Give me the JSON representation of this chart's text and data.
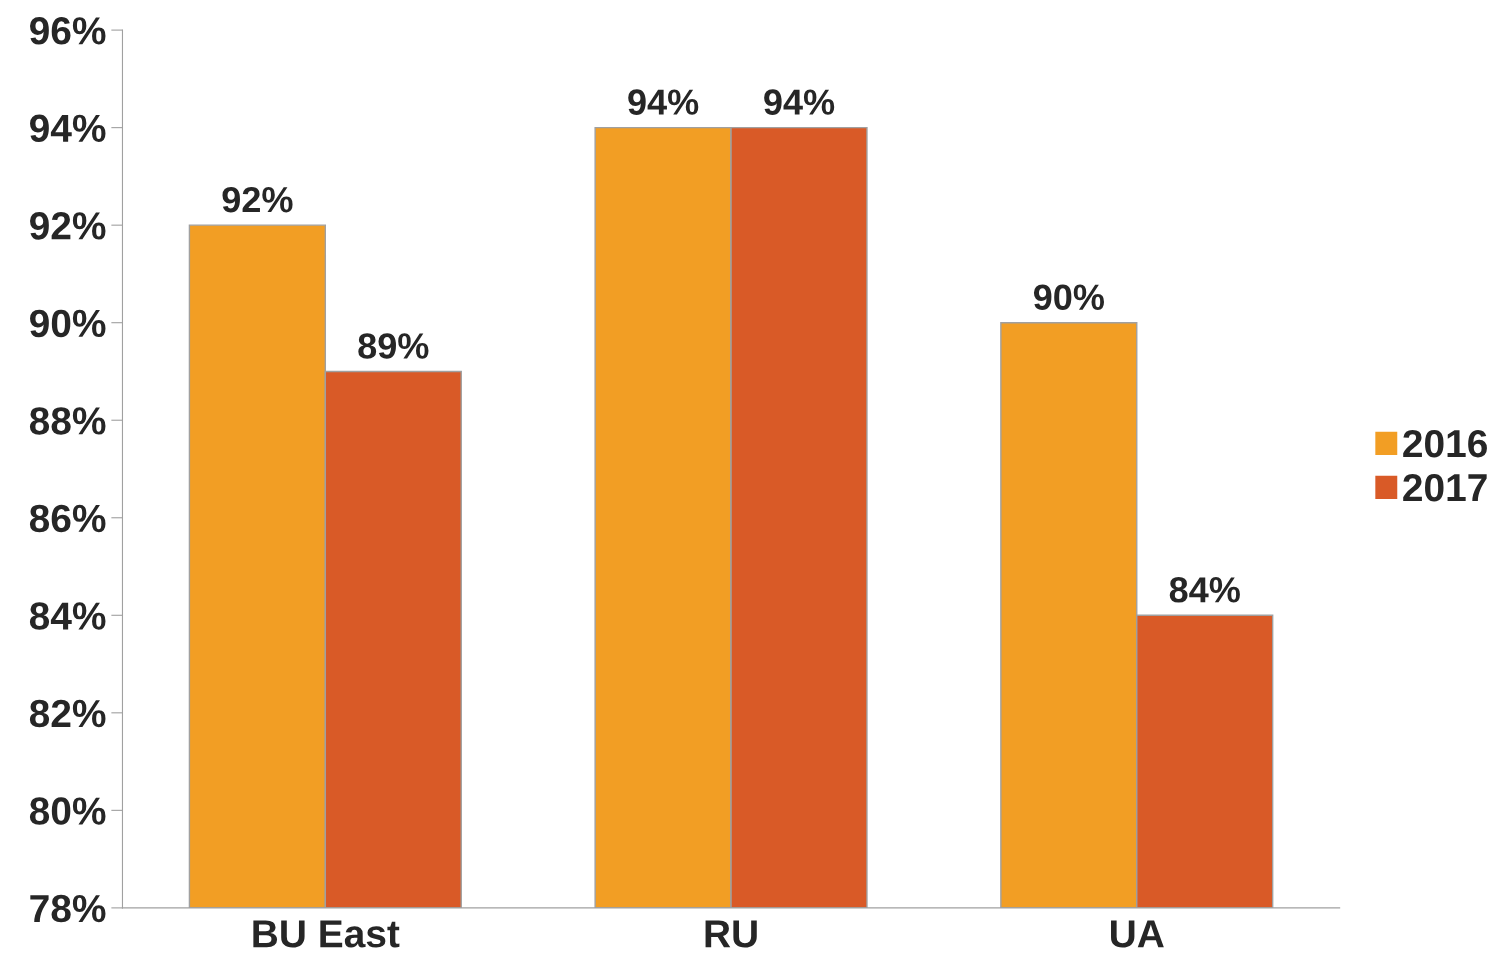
{
  "chart_data": {
    "type": "bar",
    "categories": [
      "BU East",
      "RU",
      "UA"
    ],
    "series": [
      {
        "name": "2016",
        "color": "#f29e24",
        "values": [
          92,
          94,
          90
        ],
        "value_labels": [
          "92%",
          "94%",
          "90%"
        ]
      },
      {
        "name": "2017",
        "color": "#d95a27",
        "values": [
          89,
          94,
          84
        ],
        "value_labels": [
          "89%",
          "94%",
          "84%"
        ]
      }
    ],
    "ylim": [
      78,
      96
    ],
    "yticks": [
      {
        "value": 78,
        "label": "78%"
      },
      {
        "value": 80,
        "label": "80%"
      },
      {
        "value": 82,
        "label": "82%"
      },
      {
        "value": 84,
        "label": "84%"
      },
      {
        "value": 86,
        "label": "86%"
      },
      {
        "value": 88,
        "label": "88%"
      },
      {
        "value": 90,
        "label": "90%"
      },
      {
        "value": 92,
        "label": "92%"
      },
      {
        "value": 94,
        "label": "94%"
      },
      {
        "value": 96,
        "label": "96%"
      }
    ],
    "grid": false,
    "legend": "right"
  }
}
